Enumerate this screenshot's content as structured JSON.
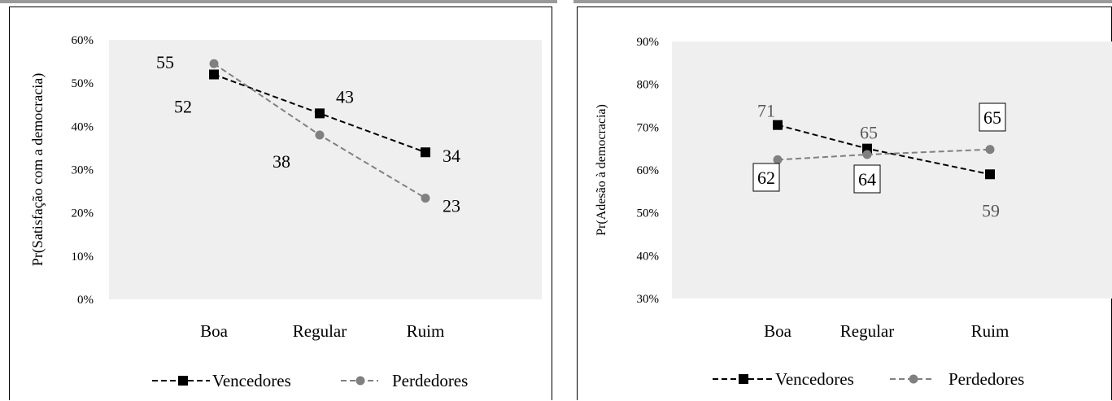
{
  "chart_data": [
    {
      "type": "line",
      "ylabel": "Pr(Satisfação com a democracia)",
      "xlabel": "",
      "categories": [
        "Boa",
        "Regular",
        "Ruim"
      ],
      "ylim": [
        0,
        0.6
      ],
      "yticks": [
        "0%",
        "10%",
        "20%",
        "30%",
        "40%",
        "50%",
        "60%"
      ],
      "series": [
        {
          "name": "Vencedores",
          "values": [
            0.52,
            0.43,
            0.34
          ],
          "labels": [
            "52",
            "43",
            "34"
          ],
          "color": "#000000",
          "marker": "square"
        },
        {
          "name": "Perdedores",
          "values": [
            0.545,
            0.38,
            0.234
          ],
          "labels": [
            "55",
            "38",
            "23"
          ],
          "color": "#808080",
          "marker": "circle"
        }
      ],
      "legend": "bottom",
      "grid": false,
      "plot_background": "#efefef"
    },
    {
      "type": "line",
      "ylabel": "Pr(Adesão à democracia)",
      "xlabel": "",
      "categories": [
        "Boa",
        "Regular",
        "Ruim"
      ],
      "ylim": [
        0.3,
        0.9
      ],
      "yticks": [
        "30%",
        "40%",
        "50%",
        "60%",
        "70%",
        "80%",
        "90%"
      ],
      "series": [
        {
          "name": "Vencedores",
          "values": [
            0.705,
            0.65,
            0.59
          ],
          "labels": [
            "71",
            "65",
            "59"
          ],
          "color": "#000000",
          "marker": "square"
        },
        {
          "name": "Perdedores",
          "values": [
            0.624,
            0.636,
            0.648
          ],
          "labels": [
            "62",
            "64",
            "65"
          ],
          "color": "#808080",
          "marker": "circle"
        }
      ],
      "legend": "bottom",
      "grid": false,
      "plot_background": "#efefef"
    }
  ]
}
